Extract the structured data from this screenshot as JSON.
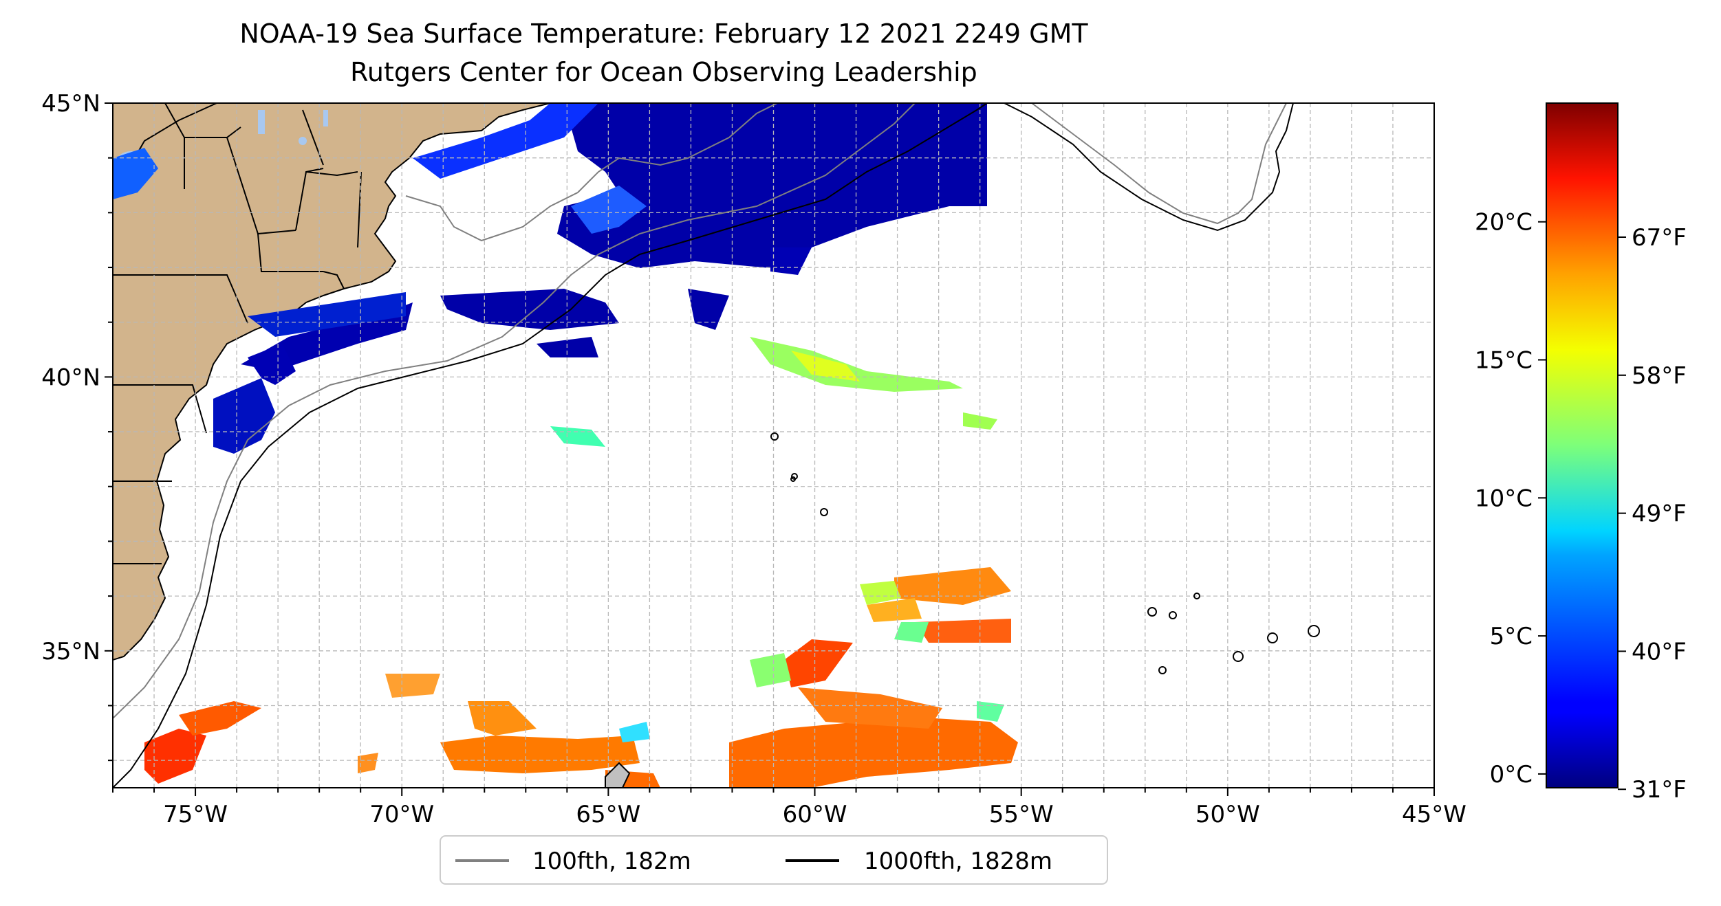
{
  "title_line1": "NOAA-19 Sea Surface Temperature: February 12 2021 2249 GMT",
  "title_line2": "Rutgers Center for Ocean Observing Leadership",
  "map": {
    "lon_range": [
      -77,
      -45
    ],
    "lat_range": [
      32.5,
      45
    ],
    "grid": true,
    "lat_ticks": [
      "45°N",
      "40°N",
      "35°N"
    ],
    "lon_ticks": [
      "75°W",
      "70°W",
      "65°W",
      "60°W",
      "55°W",
      "50°W",
      "45°W"
    ],
    "land_color": "#d2b48c",
    "lake_color": "#a8c8f0"
  },
  "legend": {
    "items": [
      {
        "label": "100fth, 182m",
        "color": "#808080"
      },
      {
        "label": "1000fth, 1828m",
        "color": "#000000"
      }
    ],
    "placement": "bottom-center"
  },
  "colorbar": {
    "celsius_ticks": [
      "20°C",
      "15°C",
      "10°C",
      "5°C",
      "0°C"
    ],
    "fahrenheit_ticks": [
      "67°F",
      "58°F",
      "49°F",
      "40°F",
      "31°F"
    ],
    "colormap": "jet",
    "range_c": [
      -0.5,
      24.3
    ]
  }
}
